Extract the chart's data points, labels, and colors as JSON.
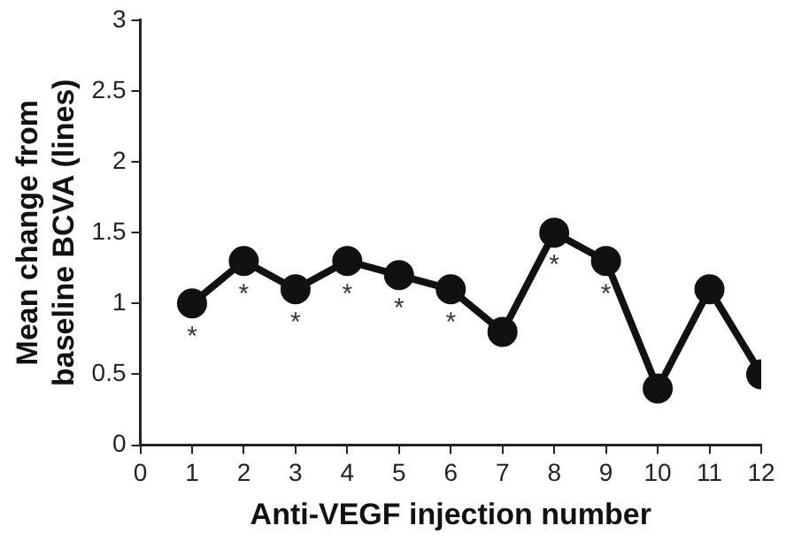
{
  "chart_data": {
    "type": "line",
    "xlabel": "Anti-VEGF injection number",
    "ylabel": "Mean change from\nbaseline BCVA (lines)",
    "x": [
      1,
      2,
      3,
      4,
      5,
      6,
      7,
      8,
      9,
      10,
      11,
      12
    ],
    "values": [
      1.0,
      1.3,
      1.1,
      1.3,
      1.2,
      1.1,
      0.8,
      1.5,
      1.3,
      0.4,
      1.1,
      0.5
    ],
    "color": "#111111",
    "marker": "circle",
    "line_style": "solid",
    "xlim": [
      0,
      12
    ],
    "xticks": [
      0,
      1,
      2,
      3,
      4,
      5,
      6,
      7,
      8,
      9,
      10,
      11,
      12
    ],
    "ylim": [
      0,
      3
    ],
    "yticks": [
      0,
      0.5,
      1,
      1.5,
      2,
      2.5,
      3
    ],
    "grid": false,
    "legend": false,
    "annotations": [
      {
        "text": "*",
        "x": 1,
        "y": 1.0
      },
      {
        "text": "*",
        "x": 2,
        "y": 1.3
      },
      {
        "text": "*",
        "x": 3,
        "y": 1.1
      },
      {
        "text": "*",
        "x": 4,
        "y": 1.3
      },
      {
        "text": "*",
        "x": 5,
        "y": 1.2
      },
      {
        "text": "*",
        "x": 6,
        "y": 1.1
      },
      {
        "text": "*",
        "x": 8,
        "y": 1.5
      },
      {
        "text": "*",
        "x": 9,
        "y": 1.3
      }
    ]
  }
}
